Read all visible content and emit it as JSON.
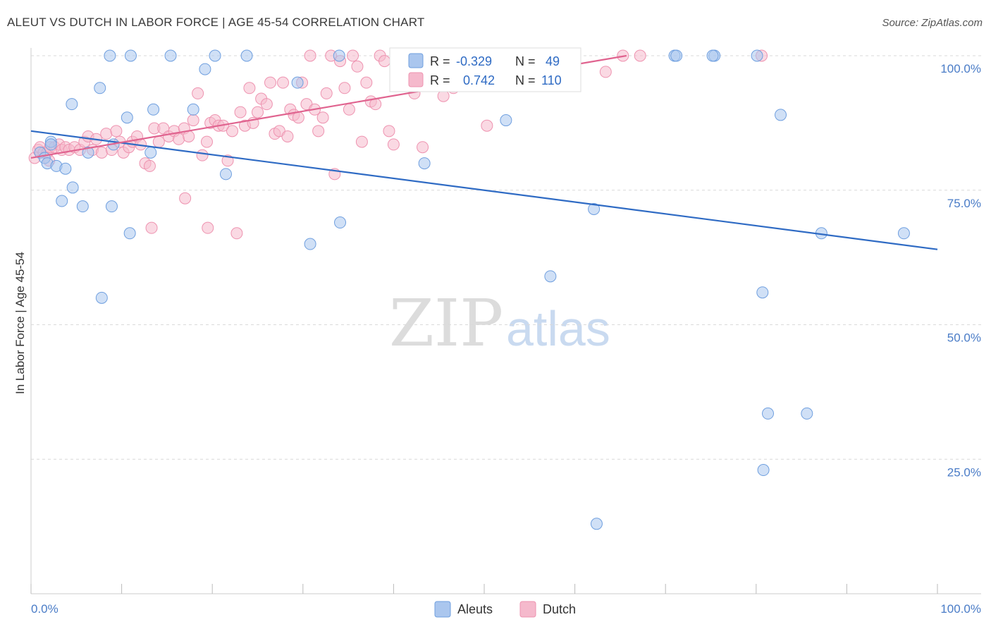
{
  "title": "ALEUT VS DUTCH IN LABOR FORCE | AGE 45-54 CORRELATION CHART",
  "source": "Source: ZipAtlas.com",
  "watermark": {
    "zip": "ZIP",
    "atlas": "atlas"
  },
  "colors": {
    "aleut_fill": "#aac6ee",
    "aleut_stroke": "#6f9fdf",
    "aleut_line": "#2f6bc4",
    "dutch_fill": "#f5b9cc",
    "dutch_stroke": "#ee93b0",
    "dutch_line": "#e0638f",
    "grid": "#d9d9d9",
    "tick_label": "#4a7cc7"
  },
  "legend": {
    "rows": [
      {
        "r_label": "R =",
        "r_value": "-0.329",
        "n_label": "N =",
        "n_value": "49"
      },
      {
        "r_label": "R =",
        "r_value": "0.742",
        "n_label": "N =",
        "n_value": "110"
      }
    ]
  },
  "chart_data": {
    "type": "scatter",
    "title": "ALEUT VS DUTCH IN LABOR FORCE | AGE 45-54 CORRELATION CHART",
    "xlabel": "",
    "ylabel": "In Labor Force | Age 45-54",
    "xlim": [
      0,
      100
    ],
    "ylim": [
      0,
      100
    ],
    "x_tick_labels": [
      "0.0%",
      "100.0%"
    ],
    "y_ticks": [
      25,
      50,
      75,
      100
    ],
    "y_tick_labels": [
      "25.0%",
      "50.0%",
      "75.0%",
      "100.0%"
    ],
    "grid": "horizontal dashed",
    "legend_position": "bottom-center",
    "series": [
      {
        "name": "Aleuts",
        "trend": {
          "x": [
            0,
            100
          ],
          "y": [
            86,
            64
          ]
        },
        "points": [
          [
            1,
            82
          ],
          [
            1.5,
            81
          ],
          [
            1.8,
            80
          ],
          [
            2.2,
            84
          ],
          [
            2.8,
            79.5
          ],
          [
            3.8,
            79
          ],
          [
            3.4,
            73
          ],
          [
            4.6,
            75.5
          ],
          [
            5.7,
            72
          ],
          [
            4.5,
            91
          ],
          [
            7.8,
            55
          ],
          [
            8.9,
            72
          ],
          [
            8.7,
            100
          ],
          [
            7.6,
            94
          ],
          [
            10.6,
            88.5
          ],
          [
            10.9,
            67
          ],
          [
            11,
            100
          ],
          [
            13.5,
            90
          ],
          [
            13.2,
            82
          ],
          [
            15.4,
            100
          ],
          [
            17.9,
            90
          ],
          [
            19.2,
            97.5
          ],
          [
            20.3,
            100
          ],
          [
            21.5,
            78
          ],
          [
            23.8,
            100
          ],
          [
            29.4,
            95
          ],
          [
            30.8,
            65
          ],
          [
            34,
            100
          ],
          [
            34.1,
            69
          ],
          [
            43.4,
            80
          ],
          [
            52.4,
            88
          ],
          [
            57.3,
            59
          ],
          [
            62.1,
            71.5
          ],
          [
            62.4,
            13
          ],
          [
            71,
            100
          ],
          [
            82.7,
            89
          ],
          [
            80.1,
            100
          ],
          [
            80.7,
            56
          ],
          [
            81.3,
            33.5
          ],
          [
            85.6,
            33.5
          ],
          [
            80.8,
            23
          ],
          [
            87.2,
            67
          ],
          [
            96.3,
            67
          ],
          [
            75.4,
            100
          ],
          [
            75.2,
            100
          ],
          [
            6.3,
            82
          ],
          [
            9.1,
            83.5
          ],
          [
            2.2,
            83.5
          ],
          [
            71.2,
            100
          ]
        ]
      },
      {
        "name": "Dutch",
        "trend": {
          "x": [
            0,
            65.7
          ],
          "y": [
            81,
            100
          ]
        },
        "points": [
          [
            0.4,
            81
          ],
          [
            0.8,
            82.5
          ],
          [
            1,
            83
          ],
          [
            1.4,
            82
          ],
          [
            1.8,
            82
          ],
          [
            2.1,
            83
          ],
          [
            2.6,
            83
          ],
          [
            3.1,
            83.5
          ],
          [
            3.4,
            82.5
          ],
          [
            3.8,
            83
          ],
          [
            4.2,
            82.5
          ],
          [
            4.8,
            83
          ],
          [
            5.4,
            82.5
          ],
          [
            5.9,
            84
          ],
          [
            6.3,
            85
          ],
          [
            6.8,
            82.5
          ],
          [
            7.2,
            84.5
          ],
          [
            7.8,
            82
          ],
          [
            8.3,
            85.5
          ],
          [
            8.9,
            82.5
          ],
          [
            9.4,
            86
          ],
          [
            9.8,
            84
          ],
          [
            10.2,
            82
          ],
          [
            10.8,
            83
          ],
          [
            11.2,
            84
          ],
          [
            11.7,
            85
          ],
          [
            12.1,
            83.5
          ],
          [
            12.6,
            80
          ],
          [
            13.1,
            79.5
          ],
          [
            13.6,
            86.5
          ],
          [
            14.1,
            84
          ],
          [
            14.6,
            86.5
          ],
          [
            15.2,
            85
          ],
          [
            15.8,
            86
          ],
          [
            16.3,
            84.5
          ],
          [
            16.9,
            86.5
          ],
          [
            17.4,
            85
          ],
          [
            17.9,
            88
          ],
          [
            18.4,
            93
          ],
          [
            18.9,
            81.5
          ],
          [
            19.4,
            84
          ],
          [
            19.8,
            87.5
          ],
          [
            20.3,
            88
          ],
          [
            20.7,
            87
          ],
          [
            21.2,
            87
          ],
          [
            21.7,
            80.5
          ],
          [
            22.2,
            86
          ],
          [
            22.7,
            67
          ],
          [
            23.1,
            89.5
          ],
          [
            23.6,
            87
          ],
          [
            24.1,
            94
          ],
          [
            24.5,
            87.5
          ],
          [
            25,
            89.5
          ],
          [
            25.4,
            92
          ],
          [
            26,
            91
          ],
          [
            26.4,
            95
          ],
          [
            26.9,
            85.5
          ],
          [
            27.4,
            86
          ],
          [
            27.8,
            95
          ],
          [
            28.3,
            85
          ],
          [
            28.6,
            90
          ],
          [
            29,
            89
          ],
          [
            29.5,
            88.5
          ],
          [
            29.9,
            95
          ],
          [
            30.4,
            91
          ],
          [
            30.8,
            100
          ],
          [
            31.3,
            90
          ],
          [
            31.7,
            86
          ],
          [
            32.2,
            88.5
          ],
          [
            32.6,
            93
          ],
          [
            33.1,
            100
          ],
          [
            33.5,
            78
          ],
          [
            34.1,
            99
          ],
          [
            34.6,
            94
          ],
          [
            35.1,
            90
          ],
          [
            35.5,
            100
          ],
          [
            36,
            98
          ],
          [
            36.5,
            84
          ],
          [
            37,
            95
          ],
          [
            37.5,
            91.5
          ],
          [
            38,
            91
          ],
          [
            38.5,
            100
          ],
          [
            39,
            99
          ],
          [
            39.5,
            86
          ],
          [
            40,
            83.5
          ],
          [
            41.2,
            95
          ],
          [
            42.3,
            93
          ],
          [
            44,
            96
          ],
          [
            45.5,
            92.5
          ],
          [
            46.6,
            94
          ],
          [
            47.6,
            96
          ],
          [
            49.4,
            100
          ],
          [
            50.5,
            96
          ],
          [
            51.3,
            97
          ],
          [
            52.1,
            100
          ],
          [
            53,
            100
          ],
          [
            54.1,
            100
          ],
          [
            55.5,
            100
          ],
          [
            56.3,
            100
          ],
          [
            59.2,
            100
          ],
          [
            63.4,
            97
          ],
          [
            65.3,
            100
          ],
          [
            67.2,
            100
          ],
          [
            80.6,
            100
          ],
          [
            2,
            80.5
          ],
          [
            13.3,
            68
          ],
          [
            17,
            73.5
          ],
          [
            19.5,
            68
          ],
          [
            43.2,
            83
          ],
          [
            50.3,
            87
          ]
        ]
      }
    ]
  }
}
